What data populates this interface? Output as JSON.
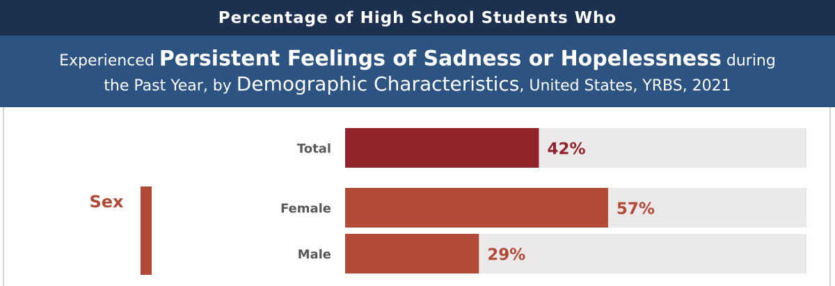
{
  "header": {
    "line1": "Percentage of High School Students Who",
    "line2_pre": "Experienced ",
    "line2_bold": "Persistent Feelings of Sadness or Hopelessness",
    "line2_post": " during",
    "line3_pre": "the Past Year, by ",
    "line3_big": "Demographic Characteristics",
    "line3_post": ", United States, YRBS, 2021"
  },
  "colors": {
    "header_dark": "#1c3150",
    "header_blue": "#2c5382",
    "total_bar": "#92232a",
    "sex_bar": "#b04a36",
    "track": "#ece9ea",
    "row_label": "#595959"
  },
  "chart_data": {
    "type": "bar",
    "orientation": "horizontal",
    "xlim": [
      0,
      100
    ],
    "unit": "%",
    "rows": [
      {
        "label": "Total",
        "value": 42,
        "value_label": "42%",
        "group": ""
      },
      {
        "label": "Female",
        "value": 57,
        "value_label": "57%",
        "group": "Sex"
      },
      {
        "label": "Male",
        "value": 29,
        "value_label": "29%",
        "group": "Sex"
      }
    ],
    "groups": [
      {
        "name": "Sex",
        "rows": [
          "Female",
          "Male"
        ]
      }
    ]
  }
}
